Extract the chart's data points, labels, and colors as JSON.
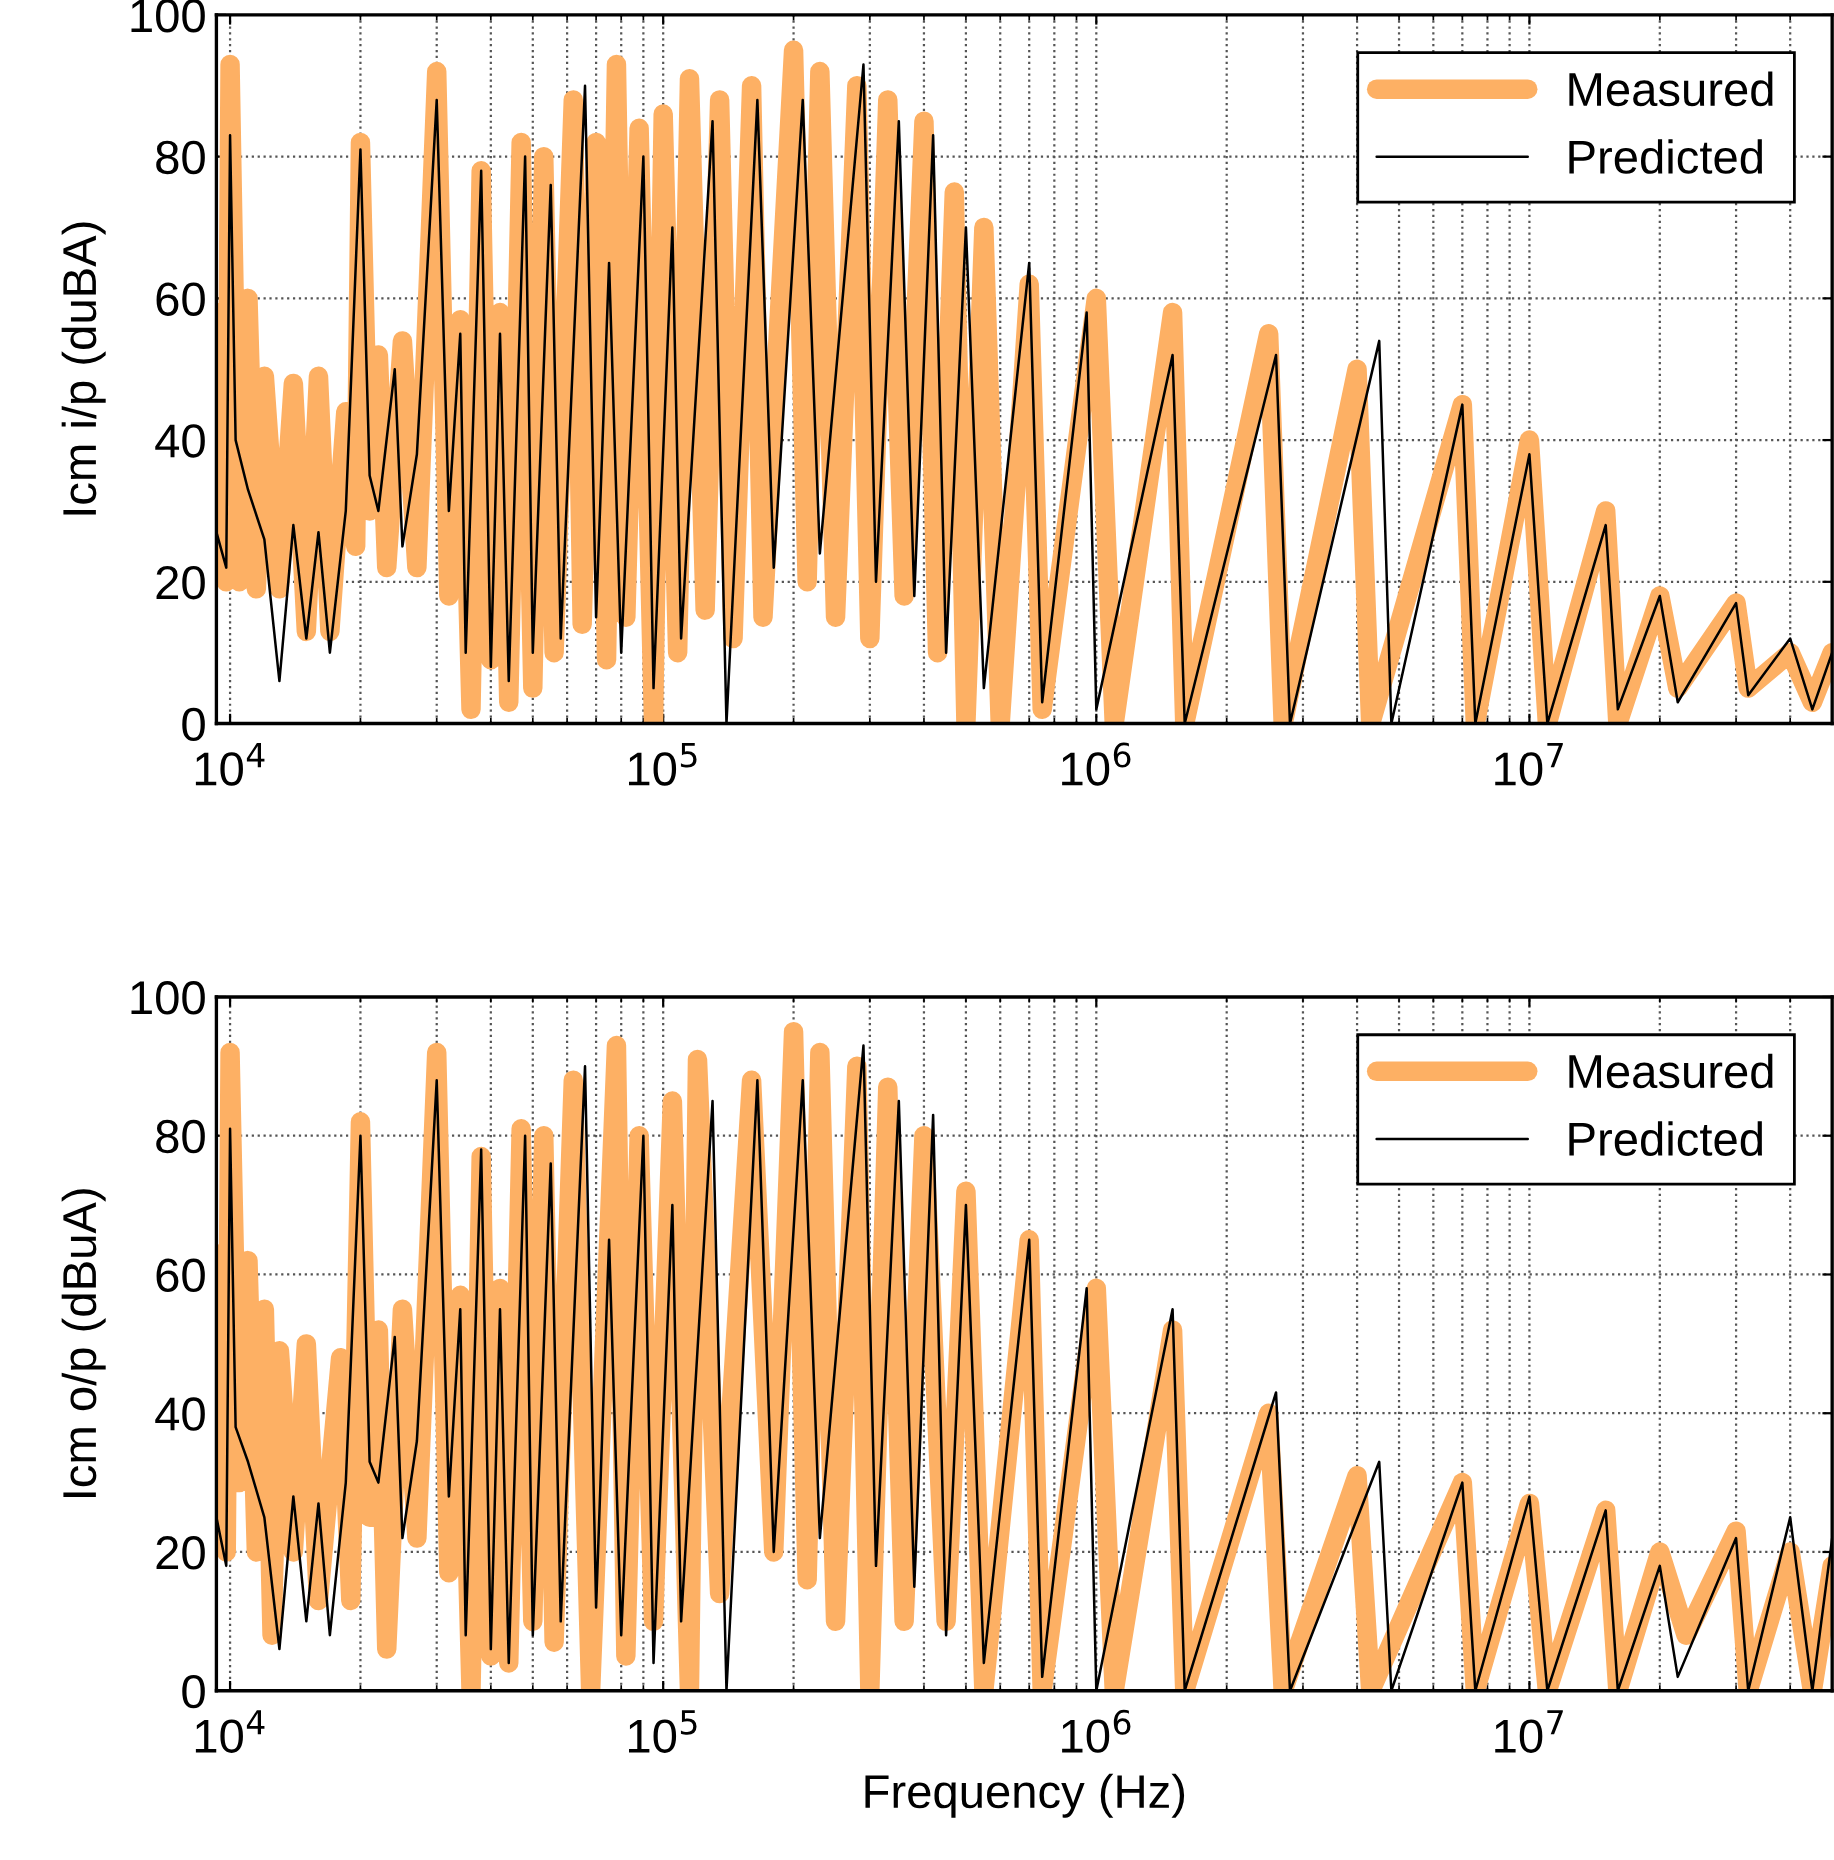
{
  "chart_data": [
    {
      "type": "line",
      "ylabel": "Icm i/p (duBA)",
      "xlim": [
        9300,
        50000000
      ],
      "ylim": [
        0,
        100
      ],
      "log": "x",
      "grid": true,
      "legend": "top right",
      "xticks": [
        {
          "value": 10000,
          "label": "10$^{4}$"
        },
        {
          "value": 100000,
          "label": "10$^{5}$"
        },
        {
          "value": 1000000,
          "label": "10$^{6}$"
        },
        {
          "value": 10000000,
          "label": "10$^{7}$"
        }
      ],
      "yticks": [
        0,
        20,
        40,
        60,
        80,
        100
      ],
      "series": [
        {
          "name": "Measured",
          "color": "#fdb064",
          "x": [
            9300,
            9800,
            10000,
            10500,
            11000,
            11500,
            12000,
            13000,
            14000,
            15000,
            16000,
            17000,
            18500,
            19500,
            20000,
            21000,
            22000,
            23000,
            25000,
            27000,
            30000,
            32000,
            34000,
            36000,
            38000,
            40000,
            42000,
            44000,
            47000,
            50000,
            53000,
            56000,
            62000,
            65000,
            70000,
            74000,
            78000,
            82000,
            88000,
            95000,
            100000,
            108000,
            115000,
            125000,
            135000,
            145000,
            160000,
            170000,
            200000,
            215000,
            230000,
            250000,
            280000,
            300000,
            330000,
            360000,
            400000,
            430000,
            470000,
            500000,
            550000,
            600000,
            700000,
            750000,
            1000000,
            1100000,
            1500000,
            1600000,
            2500000,
            2700000,
            4000000,
            4300000,
            7000000,
            7500000,
            10000000,
            11000000,
            15000000,
            16000000,
            20000000,
            22000000,
            30000000,
            32000000,
            40000000,
            45000000,
            50000000
          ],
          "values": [
            58,
            20,
            93,
            20,
            60,
            19,
            49,
            19,
            48,
            13,
            49,
            13,
            44,
            25,
            82,
            30,
            52,
            22,
            54,
            22,
            92,
            18,
            57,
            2,
            78,
            9,
            58,
            3,
            82,
            5,
            80,
            10,
            88,
            14,
            82,
            9,
            93,
            15,
            84,
            0,
            86,
            10,
            91,
            16,
            88,
            12,
            90,
            15,
            95,
            20,
            92,
            15,
            90,
            12,
            88,
            18,
            85,
            10,
            75,
            0,
            70,
            0,
            62,
            2,
            60,
            0,
            58,
            0,
            55,
            0,
            50,
            0,
            45,
            0,
            40,
            0,
            30,
            0,
            18,
            5,
            17,
            5,
            10,
            3,
            10
          ]
        },
        {
          "name": "Predicted",
          "color": "#000000",
          "x": [
            9300,
            9800,
            10000,
            10300,
            11000,
            12000,
            13000,
            14000,
            15000,
            16000,
            17000,
            18500,
            20000,
            21000,
            22000,
            24000,
            25000,
            27000,
            30000,
            32000,
            34000,
            35000,
            38000,
            40000,
            42000,
            44000,
            48000,
            50000,
            55000,
            58000,
            66000,
            70000,
            75000,
            80000,
            90000,
            95000,
            105000,
            110000,
            130000,
            140000,
            165000,
            180000,
            210000,
            230000,
            290000,
            310000,
            350000,
            380000,
            420000,
            450000,
            500000,
            550000,
            700000,
            750000,
            950000,
            1000000,
            1500000,
            1600000,
            2600000,
            2800000,
            4500000,
            4800000,
            7000000,
            7500000,
            10000000,
            11000000,
            15000000,
            16000000,
            20000000,
            22000000,
            30000000,
            32000000,
            40000000,
            45000000,
            50000000
          ],
          "values": [
            27,
            22,
            83,
            40,
            33,
            26,
            6,
            28,
            12,
            27,
            10,
            30,
            81,
            35,
            30,
            50,
            25,
            38,
            88,
            30,
            55,
            10,
            78,
            8,
            55,
            6,
            80,
            10,
            76,
            12,
            90,
            15,
            65,
            10,
            80,
            5,
            70,
            12,
            85,
            0,
            88,
            22,
            88,
            24,
            93,
            20,
            85,
            18,
            83,
            10,
            70,
            5,
            65,
            3,
            58,
            2,
            52,
            0,
            52,
            0,
            54,
            0,
            45,
            0,
            38,
            0,
            28,
            2,
            18,
            3,
            17,
            4,
            12,
            2,
            10
          ]
        }
      ]
    },
    {
      "type": "line",
      "xlabel": "Frequency (Hz)",
      "ylabel": "Icm o/p (dBuA)",
      "xlim": [
        9300,
        50000000
      ],
      "ylim": [
        0,
        100
      ],
      "log": "x",
      "grid": true,
      "legend": "top right",
      "xticks": [
        {
          "value": 10000,
          "label": "10$^{4}$"
        },
        {
          "value": 100000,
          "label": "10$^{5}$"
        },
        {
          "value": 1000000,
          "label": "10$^{6}$"
        },
        {
          "value": 10000000,
          "label": "10$^{7}$"
        }
      ],
      "yticks": [
        0,
        20,
        40,
        60,
        80,
        100
      ],
      "series": [
        {
          "name": "Measured",
          "color": "#fdb064",
          "x": [
            9300,
            9800,
            10000,
            10500,
            11000,
            11500,
            12000,
            12500,
            13000,
            14000,
            15000,
            16000,
            18000,
            19000,
            20000,
            21000,
            22000,
            23000,
            25000,
            27000,
            30000,
            32000,
            34000,
            36000,
            38000,
            40000,
            42000,
            44000,
            47000,
            50000,
            53000,
            56000,
            62000,
            68000,
            78000,
            82000,
            88000,
            95000,
            105000,
            115000,
            120000,
            135000,
            160000,
            180000,
            200000,
            215000,
            230000,
            250000,
            280000,
            300000,
            330000,
            360000,
            400000,
            450000,
            500000,
            550000,
            700000,
            750000,
            1000000,
            1100000,
            1500000,
            1600000,
            2500000,
            2700000,
            4000000,
            4300000,
            7000000,
            7500000,
            10000000,
            11000000,
            15000000,
            16000000,
            20000000,
            23000000,
            30000000,
            32000000,
            40000000,
            45000000,
            50000000
          ],
          "values": [
            63,
            20,
            92,
            30,
            62,
            20,
            55,
            8,
            49,
            20,
            50,
            13,
            48,
            13,
            82,
            25,
            52,
            6,
            55,
            22,
            92,
            17,
            57,
            0,
            77,
            5,
            58,
            4,
            81,
            10,
            80,
            7,
            88,
            0,
            93,
            5,
            80,
            10,
            85,
            0,
            91,
            14,
            88,
            20,
            95,
            16,
            92,
            10,
            90,
            0,
            87,
            10,
            80,
            10,
            72,
            0,
            65,
            0,
            58,
            0,
            52,
            0,
            40,
            0,
            31,
            0,
            30,
            0,
            27,
            0,
            26,
            0,
            20,
            8,
            23,
            0,
            20,
            0,
            18
          ]
        },
        {
          "name": "Predicted",
          "color": "#000000",
          "x": [
            9300,
            9800,
            10000,
            10300,
            11000,
            12000,
            13000,
            14000,
            15000,
            16000,
            17000,
            18500,
            20000,
            21000,
            22000,
            24000,
            25000,
            27000,
            30000,
            32000,
            34000,
            35000,
            38000,
            40000,
            42000,
            44000,
            48000,
            50000,
            55000,
            58000,
            66000,
            70000,
            75000,
            80000,
            90000,
            95000,
            105000,
            110000,
            130000,
            140000,
            165000,
            180000,
            210000,
            230000,
            290000,
            310000,
            350000,
            380000,
            420000,
            450000,
            500000,
            550000,
            700000,
            750000,
            950000,
            1000000,
            1500000,
            1600000,
            2600000,
            2800000,
            4500000,
            4800000,
            7000000,
            7500000,
            10000000,
            11000000,
            15000000,
            16000000,
            20000000,
            22000000,
            30000000,
            32000000,
            40000000,
            45000000,
            50000000
          ],
          "values": [
            25,
            18,
            81,
            38,
            33,
            25,
            6,
            28,
            10,
            27,
            8,
            30,
            80,
            33,
            30,
            51,
            22,
            36,
            88,
            28,
            55,
            8,
            78,
            6,
            55,
            4,
            80,
            8,
            76,
            10,
            90,
            12,
            65,
            8,
            80,
            4,
            70,
            10,
            85,
            0,
            88,
            20,
            88,
            22,
            93,
            18,
            85,
            15,
            83,
            8,
            70,
            4,
            65,
            2,
            58,
            0,
            55,
            0,
            43,
            0,
            33,
            0,
            30,
            0,
            28,
            0,
            26,
            0,
            18,
            2,
            22,
            0,
            25,
            0,
            22
          ]
        }
      ]
    }
  ]
}
